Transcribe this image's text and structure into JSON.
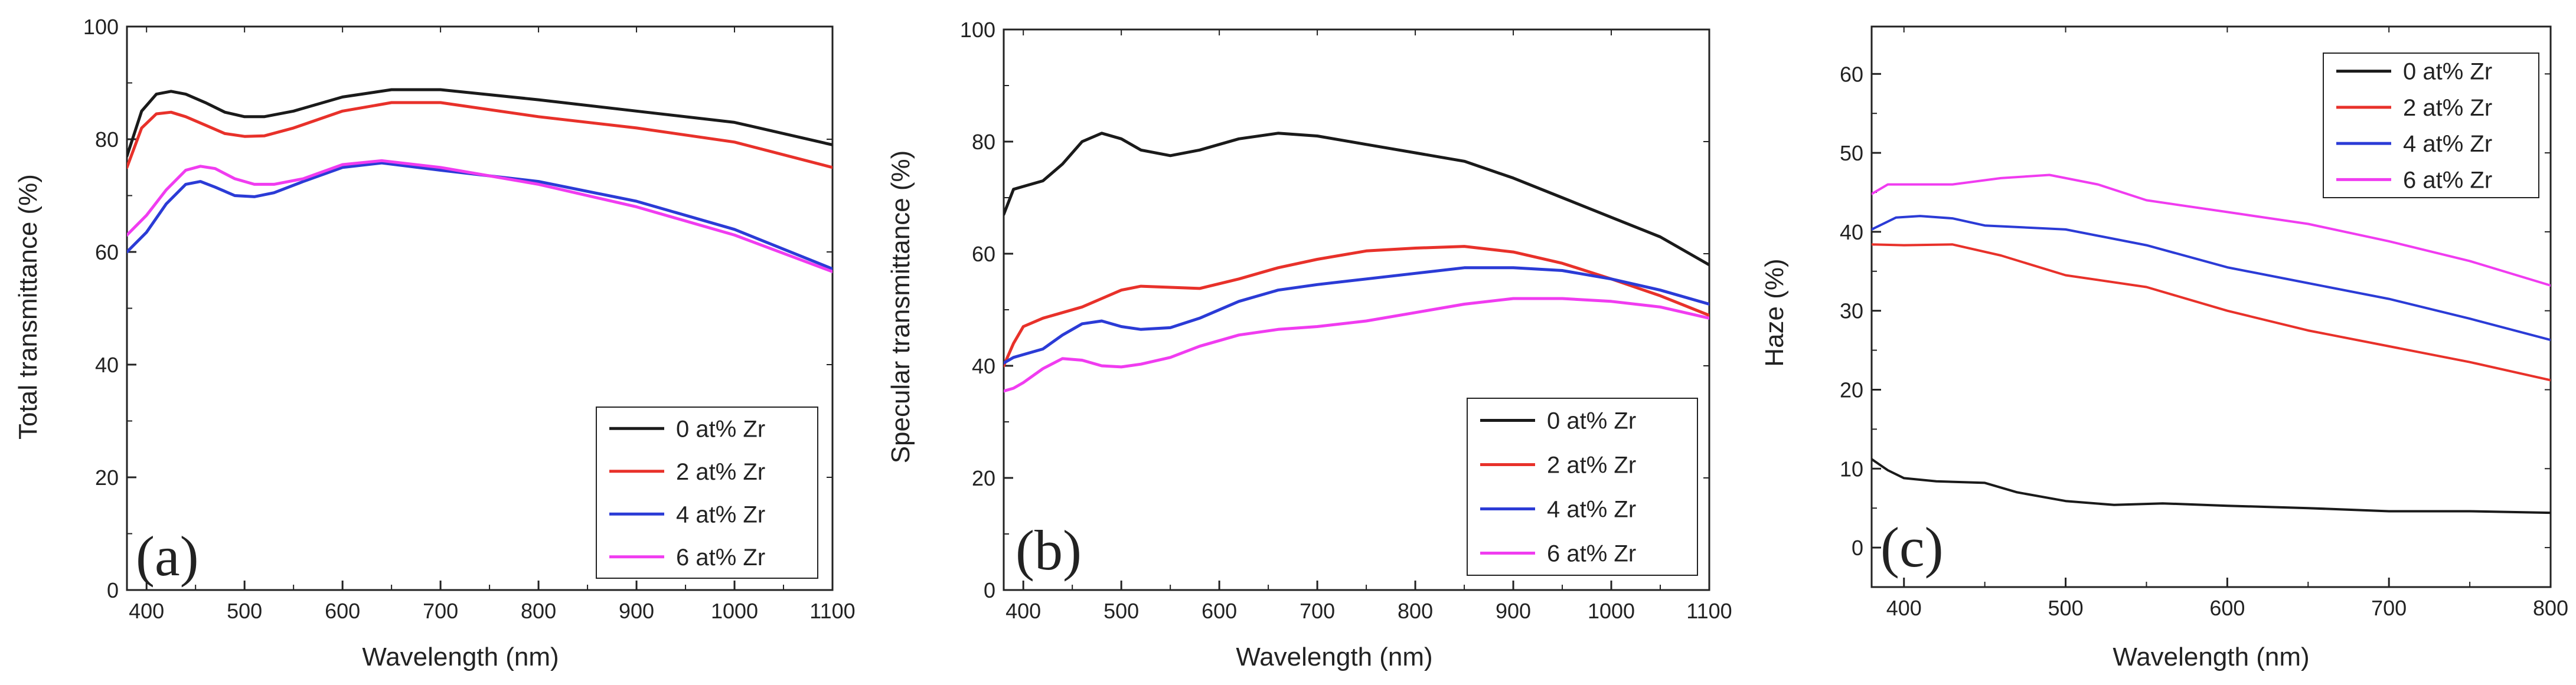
{
  "chart_data": [
    {
      "type": "line",
      "panel_label": "(a)",
      "xlabel": "Wavelength (nm)",
      "ylabel": "Total transmittance (%)",
      "xlim": [
        380,
        1100
      ],
      "ylim": [
        0,
        100
      ],
      "xticks": [
        400,
        500,
        600,
        700,
        800,
        900,
        1000,
        1100
      ],
      "yticks": [
        0,
        20,
        40,
        60,
        80,
        100
      ],
      "legend_position": "bottom-right",
      "series": [
        {
          "name": "0 at% Zr",
          "color": "#1a1a1a",
          "x": [
            380,
            395,
            410,
            425,
            440,
            460,
            480,
            500,
            520,
            550,
            600,
            650,
            700,
            800,
            900,
            1000,
            1100
          ],
          "y": [
            77,
            85,
            88,
            88.5,
            88,
            86.5,
            84.8,
            84,
            84,
            85,
            87.5,
            88.8,
            88.8,
            87,
            85,
            83,
            79
          ]
        },
        {
          "name": "2 at% Zr",
          "color": "#e8312a",
          "x": [
            380,
            395,
            410,
            425,
            440,
            460,
            480,
            500,
            520,
            550,
            600,
            650,
            700,
            800,
            900,
            1000,
            1100
          ],
          "y": [
            75,
            82,
            84.5,
            84.8,
            84,
            82.5,
            81,
            80.5,
            80.6,
            82,
            85,
            86.5,
            86.5,
            84,
            82,
            79.5,
            75
          ]
        },
        {
          "name": "4 at% Zr",
          "color": "#2b3bd6",
          "x": [
            380,
            400,
            420,
            440,
            455,
            470,
            490,
            510,
            530,
            560,
            600,
            640,
            700,
            800,
            900,
            1000,
            1100
          ],
          "y": [
            60,
            63.5,
            68.5,
            72,
            72.5,
            71.5,
            70,
            69.8,
            70.5,
            72.5,
            75,
            75.8,
            74.5,
            72.5,
            69,
            64,
            57
          ]
        },
        {
          "name": "6 at% Zr",
          "color": "#f03cf0",
          "x": [
            380,
            400,
            420,
            440,
            455,
            470,
            490,
            510,
            530,
            560,
            600,
            640,
            700,
            800,
            900,
            1000,
            1100
          ],
          "y": [
            63,
            66.5,
            71,
            74.5,
            75.2,
            74.8,
            73,
            72,
            72,
            73,
            75.5,
            76.2,
            75,
            72,
            68,
            63,
            56.5
          ]
        }
      ]
    },
    {
      "type": "line",
      "panel_label": "(b)",
      "xlabel": "Wavelength (nm)",
      "ylabel": "Specular transmittance (%)",
      "xlim": [
        380,
        1100
      ],
      "ylim": [
        0,
        100
      ],
      "xticks": [
        400,
        500,
        600,
        700,
        800,
        900,
        1000,
        1100
      ],
      "yticks": [
        0,
        20,
        40,
        60,
        80,
        100
      ],
      "legend_position": "bottom-right",
      "series": [
        {
          "name": "0 at% Zr",
          "color": "#1a1a1a",
          "x": [
            380,
            390,
            400,
            420,
            440,
            460,
            480,
            500,
            520,
            550,
            580,
            620,
            660,
            700,
            750,
            800,
            850,
            900,
            950,
            1000,
            1050,
            1100
          ],
          "y": [
            67,
            71.5,
            72,
            73,
            76,
            80,
            81.5,
            80.5,
            78.5,
            77.5,
            78.5,
            80.5,
            81.5,
            81,
            79.5,
            78,
            76.5,
            73.5,
            70,
            66.5,
            63,
            58
          ]
        },
        {
          "name": "2 at% Zr",
          "color": "#e8312a",
          "x": [
            380,
            390,
            400,
            420,
            440,
            460,
            480,
            500,
            520,
            550,
            580,
            620,
            660,
            700,
            750,
            800,
            850,
            900,
            950,
            1000,
            1050,
            1100
          ],
          "y": [
            40,
            44,
            47,
            48.5,
            49.5,
            50.5,
            52,
            53.5,
            54.2,
            54,
            53.8,
            55.5,
            57.5,
            59,
            60.5,
            61,
            61.3,
            60.3,
            58.3,
            55.5,
            52.5,
            49
          ]
        },
        {
          "name": "4 at% Zr",
          "color": "#2b3bd6",
          "x": [
            380,
            390,
            400,
            420,
            440,
            460,
            480,
            500,
            520,
            550,
            580,
            620,
            660,
            700,
            750,
            800,
            850,
            900,
            950,
            1000,
            1050,
            1100
          ],
          "y": [
            40.5,
            41.5,
            42,
            43,
            45.5,
            47.5,
            48,
            47,
            46.5,
            46.8,
            48.5,
            51.5,
            53.5,
            54.5,
            55.5,
            56.5,
            57.5,
            57.5,
            57,
            55.5,
            53.5,
            51
          ]
        },
        {
          "name": "6 at% Zr",
          "color": "#f03cf0",
          "x": [
            380,
            390,
            400,
            420,
            440,
            460,
            480,
            500,
            520,
            550,
            580,
            620,
            660,
            700,
            750,
            800,
            850,
            900,
            950,
            1000,
            1050,
            1100
          ],
          "y": [
            35.5,
            36,
            37,
            39.5,
            41.3,
            41,
            40,
            39.8,
            40.3,
            41.5,
            43.5,
            45.5,
            46.5,
            47,
            48,
            49.5,
            51,
            52,
            52,
            51.5,
            50.5,
            48.5
          ]
        }
      ]
    },
    {
      "type": "line",
      "panel_label": "(c)",
      "xlabel": "Wavelength (nm)",
      "ylabel": "Haze (%)",
      "xlim": [
        380,
        800
      ],
      "ylim": [
        -5,
        66
      ],
      "xticks": [
        400,
        500,
        600,
        700,
        800
      ],
      "yticks": [
        0,
        10,
        20,
        30,
        40,
        50,
        60
      ],
      "legend_position": "top-right",
      "series": [
        {
          "name": "0 at% Zr",
          "color": "#1a1a1a",
          "x": [
            380,
            390,
            400,
            420,
            450,
            470,
            500,
            530,
            560,
            600,
            650,
            700,
            750,
            800
          ],
          "y": [
            11.2,
            9.8,
            8.8,
            8.4,
            8.2,
            7,
            5.9,
            5.4,
            5.6,
            5.3,
            5,
            4.6,
            4.6,
            4.4
          ]
        },
        {
          "name": "2 at% Zr",
          "color": "#e8312a",
          "x": [
            380,
            400,
            430,
            460,
            500,
            550,
            600,
            650,
            700,
            750,
            800
          ],
          "y": [
            38.4,
            38.3,
            38.4,
            37,
            34.5,
            33,
            30,
            27.5,
            25.5,
            23.5,
            21.2
          ]
        },
        {
          "name": "4 at% Zr",
          "color": "#2b3bd6",
          "x": [
            380,
            395,
            410,
            430,
            450,
            500,
            550,
            600,
            650,
            700,
            750,
            800
          ],
          "y": [
            40.3,
            41.8,
            42,
            41.7,
            40.8,
            40.3,
            38.3,
            35.5,
            33.5,
            31.5,
            29,
            26.3
          ]
        },
        {
          "name": "6 at% Zr",
          "color": "#f03cf0",
          "x": [
            380,
            390,
            400,
            430,
            460,
            490,
            520,
            550,
            600,
            650,
            700,
            750,
            800
          ],
          "y": [
            44.8,
            46,
            46,
            46,
            46.8,
            47.2,
            46,
            44,
            42.5,
            41,
            38.8,
            36.3,
            33.2
          ]
        }
      ]
    }
  ]
}
